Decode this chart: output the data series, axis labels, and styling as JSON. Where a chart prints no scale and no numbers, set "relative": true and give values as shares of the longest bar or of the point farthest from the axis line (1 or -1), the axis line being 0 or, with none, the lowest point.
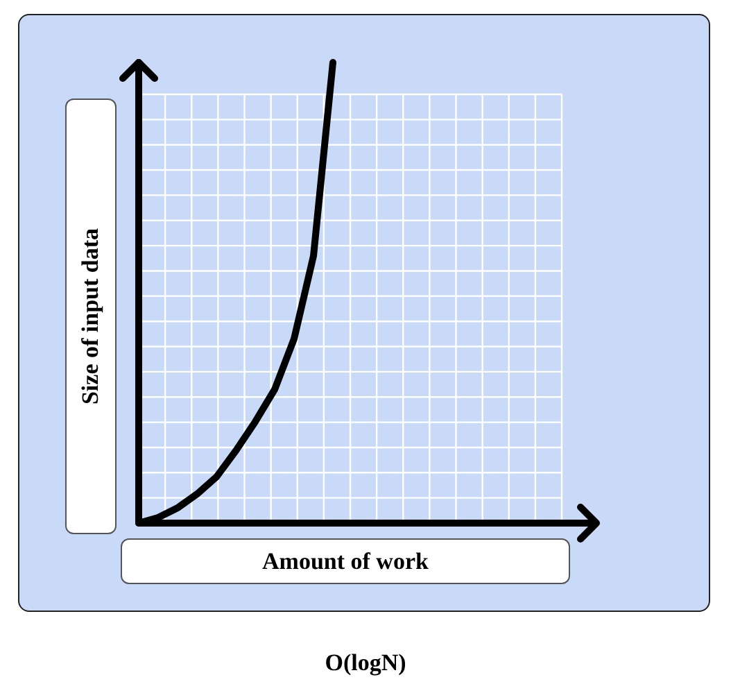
{
  "chart_data": {
    "type": "line",
    "title": "O(logN)",
    "xlabel": "Amount of work",
    "ylabel": "Size of input data",
    "relative": true,
    "grid": true,
    "marker": "none",
    "categories": [
      null,
      null,
      null,
      null,
      null,
      null,
      null,
      null,
      null,
      null,
      null
    ],
    "series": [
      {
        "color": "#000000",
        "values": [
          0,
          0.012,
          0.033,
          0.063,
          0.1,
          0.157,
          0.22,
          0.29,
          0.4,
          0.58,
          1
        ]
      }
    ]
  }
}
